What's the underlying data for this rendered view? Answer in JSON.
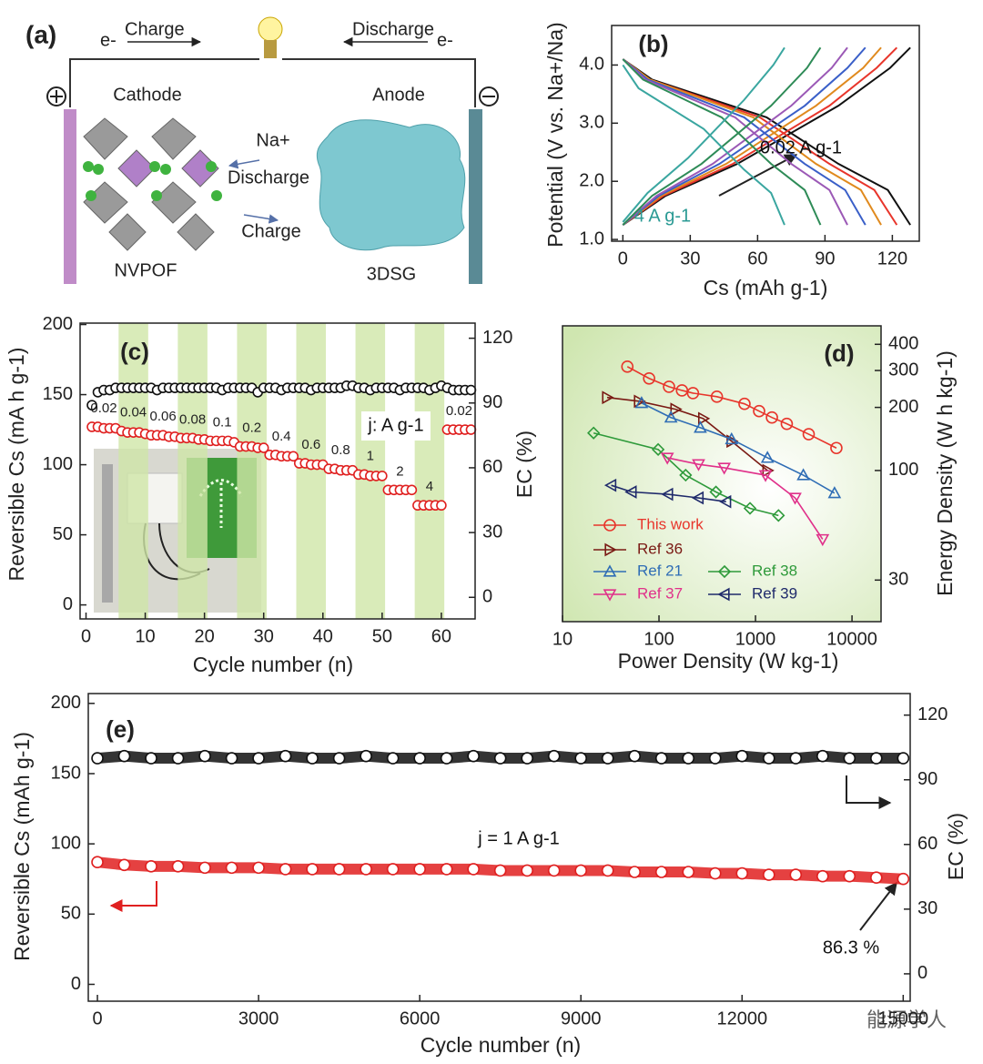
{
  "schematic": {
    "label": "(a)",
    "charge": "Charge",
    "discharge": "Discharge",
    "electron_left": "e-",
    "electron_right": "e-",
    "cathode": "Cathode",
    "anode": "Anode",
    "ion": "Na+",
    "ion_discharge": "Discharge",
    "ion_charge": "Charge",
    "cathode_material": "NVPOF",
    "anode_material": "3DSG"
  },
  "watermark": "能源学人",
  "chart_data": [
    {
      "type": "line",
      "label": "(b)",
      "xlabel": "Cs (mAh g-1)",
      "ylabel": "Potential (V vs. Na+/Na)",
      "xlim": [
        -5,
        132
      ],
      "ylim": [
        0.97,
        4.68
      ],
      "xticks": [
        0,
        30,
        60,
        90,
        120
      ],
      "yticks": [
        {
          "value": 1,
          "label": "1.0"
        },
        {
          "value": 2,
          "label": "2.0"
        },
        {
          "value": 3,
          "label": "3.0"
        },
        {
          "value": 4,
          "label": "4.0"
        }
      ],
      "annotations": [
        "0.02 A g-1",
        "4 A g-1"
      ],
      "series": [
        {
          "color": "#111111",
          "x": [
            0,
            13,
            64,
            96,
            118,
            128
          ],
          "values": [
            4.1,
            3.75,
            3.1,
            2.3,
            1.85,
            1.25
          ]
        },
        {
          "color": "#111111",
          "x": [
            0,
            19,
            51,
            96,
            119,
            128
          ],
          "values": [
            1.25,
            1.75,
            2.3,
            3.3,
            3.95,
            4.3
          ]
        },
        {
          "color": "#e8352b",
          "x": [
            0,
            12,
            61,
            92,
            112,
            122
          ],
          "values": [
            4.1,
            3.75,
            3.1,
            2.3,
            1.85,
            1.25
          ]
        },
        {
          "color": "#e8352b",
          "x": [
            0,
            18,
            49,
            92,
            113,
            122
          ],
          "values": [
            1.25,
            1.75,
            2.3,
            3.3,
            3.95,
            4.3
          ]
        },
        {
          "color": "#e08a1e",
          "x": [
            0,
            12,
            58,
            86,
            106,
            115
          ],
          "values": [
            4.1,
            3.75,
            3.1,
            2.3,
            1.85,
            1.25
          ]
        },
        {
          "color": "#e08a1e",
          "x": [
            0,
            17,
            46,
            86,
            107,
            115
          ],
          "values": [
            1.25,
            1.75,
            2.3,
            3.3,
            3.95,
            4.3
          ]
        },
        {
          "color": "#3a5fc8",
          "x": [
            0,
            11,
            54,
            81,
            99,
            108
          ],
          "values": [
            4.1,
            3.75,
            3.1,
            2.3,
            1.85,
            1.25
          ]
        },
        {
          "color": "#3a5fc8",
          "x": [
            0,
            16,
            43,
            81,
            100,
            108
          ],
          "values": [
            1.25,
            1.75,
            2.3,
            3.3,
            3.95,
            4.3
          ]
        },
        {
          "color": "#9b59b6",
          "x": [
            0,
            10,
            50,
            75,
            92,
            100
          ],
          "values": [
            4.1,
            3.75,
            3.1,
            2.3,
            1.85,
            1.25
          ]
        },
        {
          "color": "#9b59b6",
          "x": [
            0,
            15,
            40,
            75,
            93,
            100
          ],
          "values": [
            1.25,
            1.75,
            2.3,
            3.3,
            3.95,
            4.3
          ]
        },
        {
          "color": "#2e8b57",
          "x": [
            0,
            9,
            44,
            66,
            81,
            88
          ],
          "values": [
            4.1,
            3.75,
            3.1,
            2.3,
            1.85,
            1.25
          ]
        },
        {
          "color": "#2e8b57",
          "x": [
            0,
            13,
            35,
            66,
            82,
            88
          ],
          "values": [
            1.25,
            1.75,
            2.3,
            3.3,
            3.95,
            4.3
          ]
        },
        {
          "color": "#3aa6a0",
          "x": [
            0,
            7,
            36,
            54,
            66,
            72
          ],
          "values": [
            4.0,
            3.6,
            2.9,
            2.2,
            1.8,
            1.25
          ]
        },
        {
          "color": "#3aa6a0",
          "x": [
            0,
            11,
            29,
            54,
            67,
            72
          ],
          "values": [
            1.3,
            1.8,
            2.4,
            3.4,
            4.0,
            4.3
          ]
        }
      ]
    },
    {
      "type": "scatter",
      "label": "(c)",
      "xlabel": "Cycle number (n)",
      "ylabel": "Reversible Cs (mA h g-1)",
      "y2label": "EC (%)",
      "xlim": [
        -1,
        65.7
      ],
      "ylim": [
        -10,
        201
      ],
      "y2lim": [
        -10,
        127
      ],
      "xticks": [
        0,
        10,
        20,
        30,
        40,
        50,
        60
      ],
      "yticks": [
        0,
        50,
        100,
        150,
        200
      ],
      "y2ticks": [
        0,
        30,
        60,
        90,
        120
      ],
      "x": [
        1,
        2,
        3,
        4,
        5,
        6,
        7,
        8,
        9,
        10,
        11,
        12,
        13,
        14,
        15,
        16,
        17,
        18,
        19,
        20,
        21,
        22,
        23,
        24,
        25,
        26,
        27,
        28,
        29,
        30,
        31,
        32,
        33,
        34,
        35,
        36,
        37,
        38,
        39,
        40,
        41,
        42,
        43,
        44,
        45,
        46,
        47,
        48,
        49,
        50,
        51,
        52,
        53,
        54,
        55,
        56,
        57,
        58,
        59,
        60,
        61,
        62,
        63,
        64,
        65
      ],
      "series": [
        {
          "color": "#e02020",
          "values": [
            127,
            127,
            126,
            126,
            126,
            124,
            123,
            123,
            123,
            122,
            121,
            121,
            121,
            120,
            120,
            119,
            119,
            119,
            118,
            118,
            117,
            117,
            117,
            117,
            116,
            113,
            113,
            113,
            112,
            112,
            107,
            107,
            106,
            106,
            106,
            101,
            101,
            100,
            100,
            100,
            97,
            97,
            96,
            96,
            96,
            93,
            93,
            92,
            92,
            92,
            82,
            82,
            82,
            82,
            82,
            71,
            71,
            71,
            71,
            71,
            125,
            125,
            125,
            125,
            125
          ]
        },
        {
          "color": "#111111",
          "axis": "y2",
          "values": [
            89,
            95,
            96,
            96,
            97,
            97,
            97,
            97,
            97,
            97,
            97,
            96,
            97,
            97,
            97,
            97,
            97,
            97,
            97,
            97,
            97,
            97,
            96,
            97,
            97,
            97,
            97,
            97,
            95,
            97,
            97,
            97,
            96,
            97,
            97,
            97,
            97,
            96,
            97,
            97,
            97,
            97,
            97,
            98,
            98,
            97,
            97,
            96,
            97,
            97,
            97,
            97,
            96,
            97,
            97,
            97,
            97,
            96,
            97,
            98,
            97,
            96,
            96,
            96,
            96
          ]
        }
      ],
      "rate_labels": [
        "0.02",
        "0.04",
        "0.06",
        "0.08",
        "0.1",
        "0.2",
        "0.4",
        "0.6",
        "0.8",
        "1",
        "2",
        "4",
        "0.02"
      ],
      "annotations": [
        "j: A g-1"
      ]
    },
    {
      "type": "scatter",
      "label": "(d)",
      "xlabel": "Power Density (W kg-1)",
      "ylabel": "Energy Density (W h kg-1)",
      "xlog": true,
      "ylog": true,
      "xlim": [
        10,
        20000
      ],
      "ylim": [
        19,
        490
      ],
      "xticks": [
        10,
        100,
        1000,
        10000
      ],
      "yticks": [
        30,
        100,
        200,
        300,
        400
      ],
      "legend": "lower left",
      "series": [
        {
          "name": "This work",
          "color": "#e8352b",
          "marker": "circle",
          "x": [
            47,
            79,
            127,
            173,
            225,
            398,
            769,
            1090,
            1480,
            2110,
            3560,
            6890
          ],
          "values": [
            313,
            275,
            251,
            241,
            234,
            225,
            208,
            192,
            179,
            167,
            149,
            128
          ]
        },
        {
          "name": "Ref 36",
          "color": "#7a1a14",
          "marker": "triangle-right",
          "x": [
            29,
            62,
            148,
            287,
            565,
            1330
          ],
          "values": [
            223,
            214,
            196,
            177,
            138,
            100
          ]
        },
        {
          "name": "Ref 21",
          "color": "#2f6db5",
          "marker": "triangle-up",
          "x": [
            66,
            133,
            268,
            565,
            1330,
            3130,
            6590
          ],
          "values": [
            210,
            179,
            160,
            141,
            115,
            95,
            78
          ]
        },
        {
          "name": "Ref 38",
          "color": "#2e9a3a",
          "marker": "diamond",
          "x": [
            21,
            98,
            189,
            389,
            877,
            1730
          ],
          "values": [
            151,
            126,
            95,
            79,
            66,
            61
          ]
        },
        {
          "name": "Ref 37",
          "color": "#e0308a",
          "marker": "triangle-down",
          "x": [
            122,
            257,
            474,
            1270,
            2570,
            4960
          ],
          "values": [
            115,
            107,
            103,
            95,
            74,
            47
          ]
        },
        {
          "name": "Ref 39",
          "color": "#1f2a6b",
          "marker": "triangle-left",
          "x": [
            32,
            52,
            124,
            257,
            496
          ],
          "values": [
            85,
            79,
            77,
            74,
            71
          ]
        }
      ]
    },
    {
      "type": "scatter",
      "label": "(e)",
      "xlabel": "Cycle number (n)",
      "ylabel": "Reversible Cs (mAh g-1)",
      "y2label": "EC (%)",
      "xlim": [
        -170,
        15130
      ],
      "ylim": [
        -12,
        207
      ],
      "y2lim": [
        -12.7,
        130
      ],
      "xticks": [
        0,
        3000,
        6000,
        9000,
        12000,
        15000
      ],
      "yticks": [
        0,
        50,
        100,
        150,
        200
      ],
      "y2ticks": [
        0,
        30,
        60,
        90,
        120
      ],
      "x": [
        0,
        500,
        1000,
        1500,
        2000,
        2500,
        3000,
        3500,
        4000,
        4500,
        5000,
        5500,
        6000,
        6500,
        7000,
        7500,
        8000,
        8500,
        9000,
        9500,
        10000,
        10500,
        11000,
        11500,
        12000,
        12500,
        13000,
        13500,
        14000,
        14500,
        15000
      ],
      "series": [
        {
          "color": "#e02020",
          "values": [
            87,
            85,
            84,
            84,
            83,
            83,
            83,
            82,
            82,
            82,
            82,
            82,
            82,
            82,
            82,
            81,
            81,
            81,
            81,
            81,
            80,
            80,
            80,
            79,
            79,
            78,
            78,
            77,
            77,
            76,
            75
          ]
        },
        {
          "color": "#111111",
          "axis": "y2",
          "values": [
            100,
            101,
            100,
            100,
            101,
            100,
            100,
            101,
            100,
            100,
            101,
            100,
            100,
            100,
            101,
            100,
            100,
            101,
            100,
            100,
            101,
            100,
            100,
            100,
            101,
            100,
            100,
            101,
            100,
            100,
            100
          ]
        }
      ],
      "annotations": [
        "j = 1 A g-1",
        "86.3 %"
      ]
    }
  ]
}
